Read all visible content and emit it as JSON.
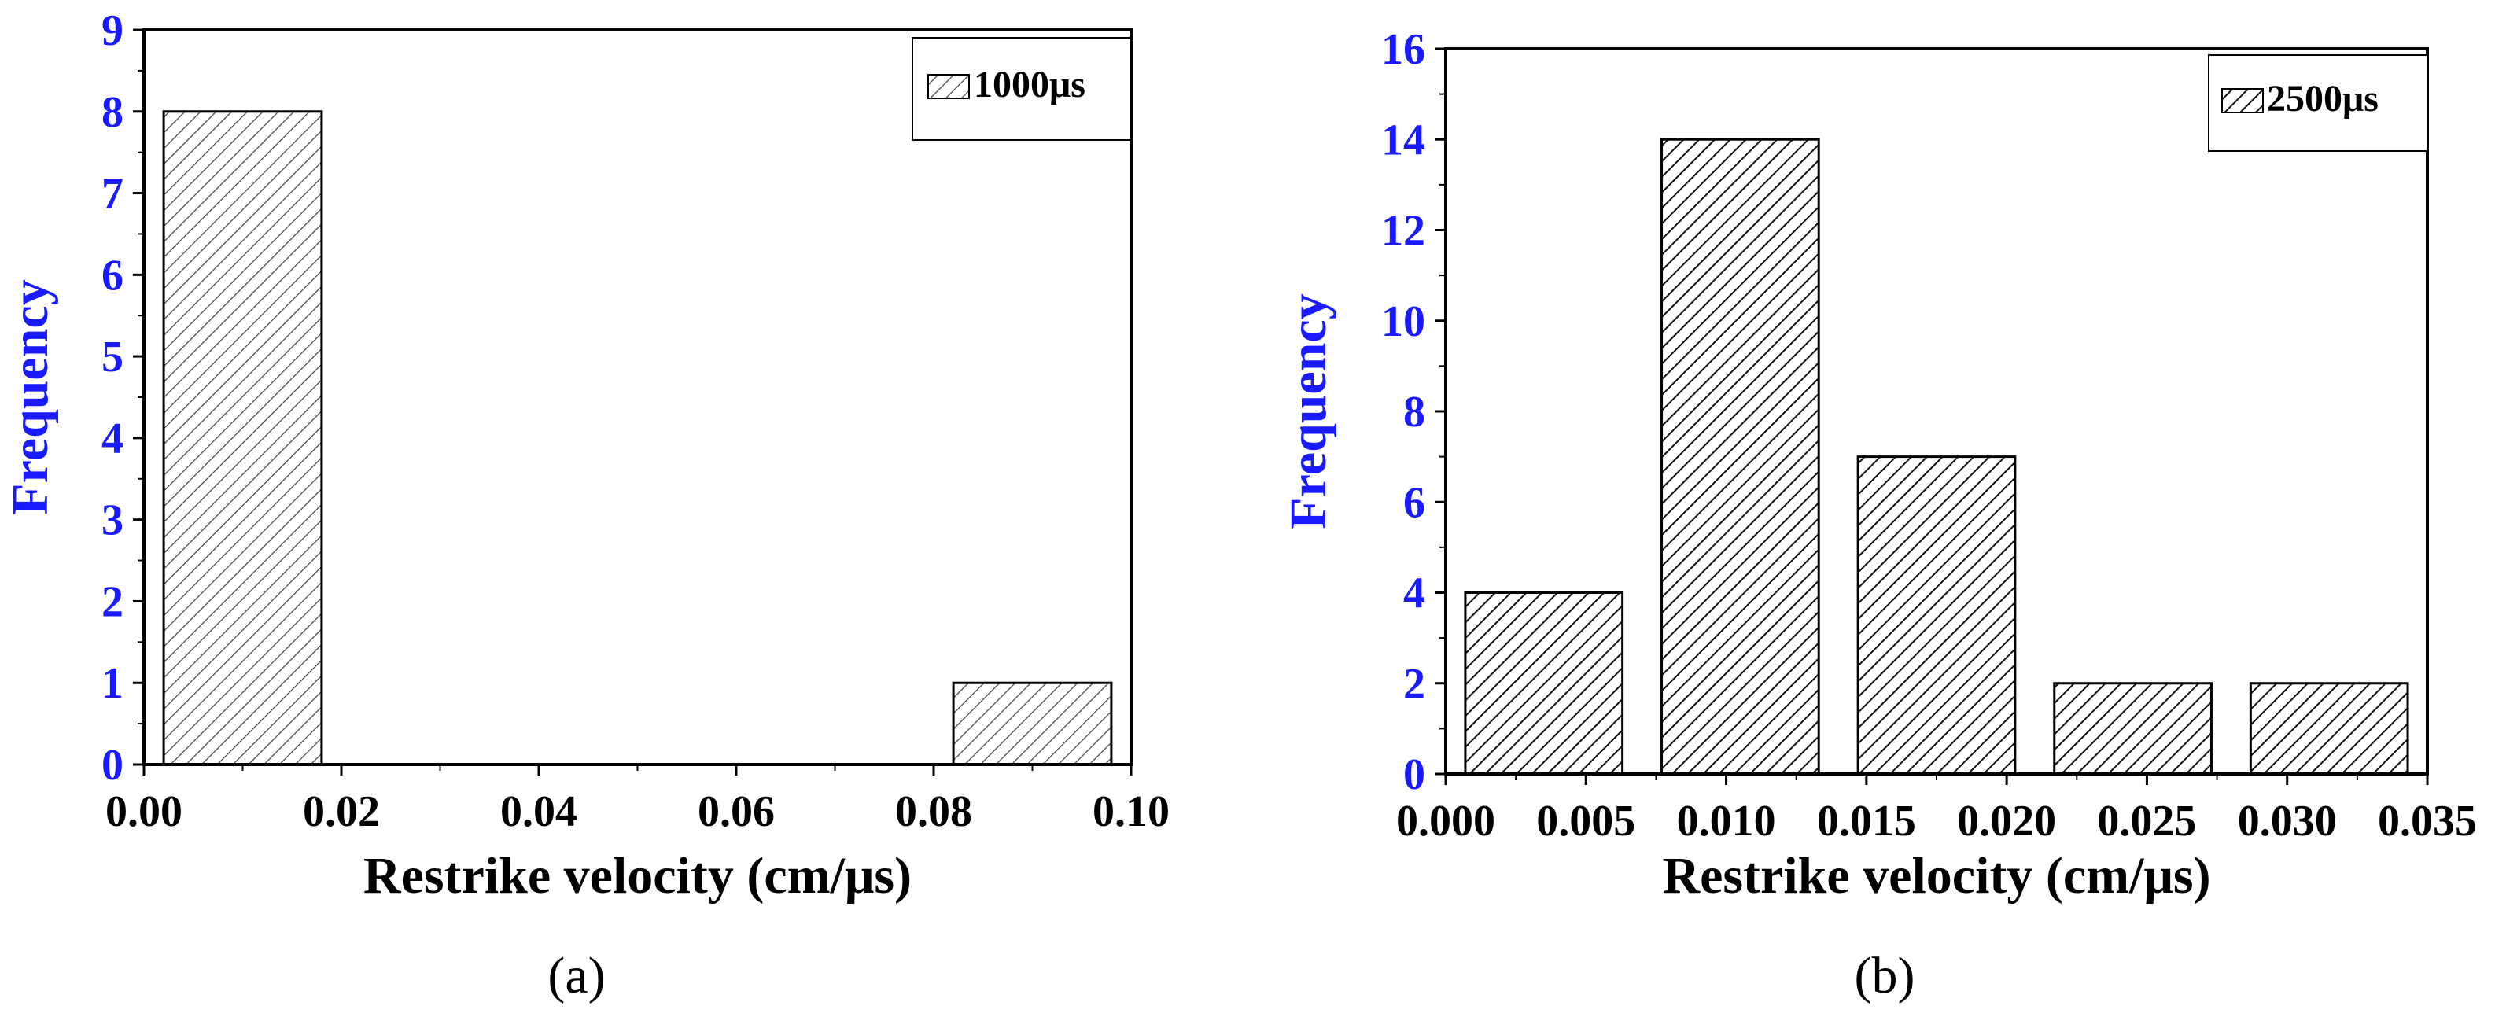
{
  "chart_data": [
    {
      "type": "bar",
      "panel_label": "(a)",
      "title": "",
      "xlabel": "Restrike velocity (cm/μs)",
      "ylabel": "Frequency",
      "xlim": [
        0.0,
        0.1
      ],
      "ylim": [
        0,
        9
      ],
      "x_ticks": [
        "0.00",
        "0.02",
        "0.04",
        "0.06",
        "0.08",
        "0.10"
      ],
      "y_ticks": [
        "0",
        "1",
        "2",
        "3",
        "4",
        "5",
        "6",
        "7",
        "8",
        "9"
      ],
      "bins": [
        {
          "start": 0.002,
          "end": 0.018,
          "value": 8
        },
        {
          "start": 0.082,
          "end": 0.098,
          "value": 1
        }
      ],
      "legend": {
        "label": "1000μs",
        "location": "top-right"
      },
      "grid": false
    },
    {
      "type": "bar",
      "panel_label": "(b)",
      "title": "",
      "xlabel": "Restrike velocity (cm/μs)",
      "ylabel": "Frequency",
      "xlim": [
        0.0,
        0.035
      ],
      "ylim": [
        0,
        16
      ],
      "x_ticks": [
        "0.000",
        "0.005",
        "0.010",
        "0.015",
        "0.020",
        "0.025",
        "0.030",
        "0.035"
      ],
      "y_ticks": [
        "0",
        "2",
        "4",
        "6",
        "8",
        "10",
        "12",
        "14",
        "16"
      ],
      "bins": [
        {
          "start": 0.0007,
          "end": 0.0063,
          "value": 4
        },
        {
          "start": 0.0077,
          "end": 0.0133,
          "value": 14
        },
        {
          "start": 0.0147,
          "end": 0.0203,
          "value": 7
        },
        {
          "start": 0.0217,
          "end": 0.0273,
          "value": 2
        },
        {
          "start": 0.0287,
          "end": 0.0343,
          "value": 2
        }
      ],
      "legend": {
        "label": "2500μs",
        "location": "top-right"
      },
      "grid": false
    }
  ]
}
